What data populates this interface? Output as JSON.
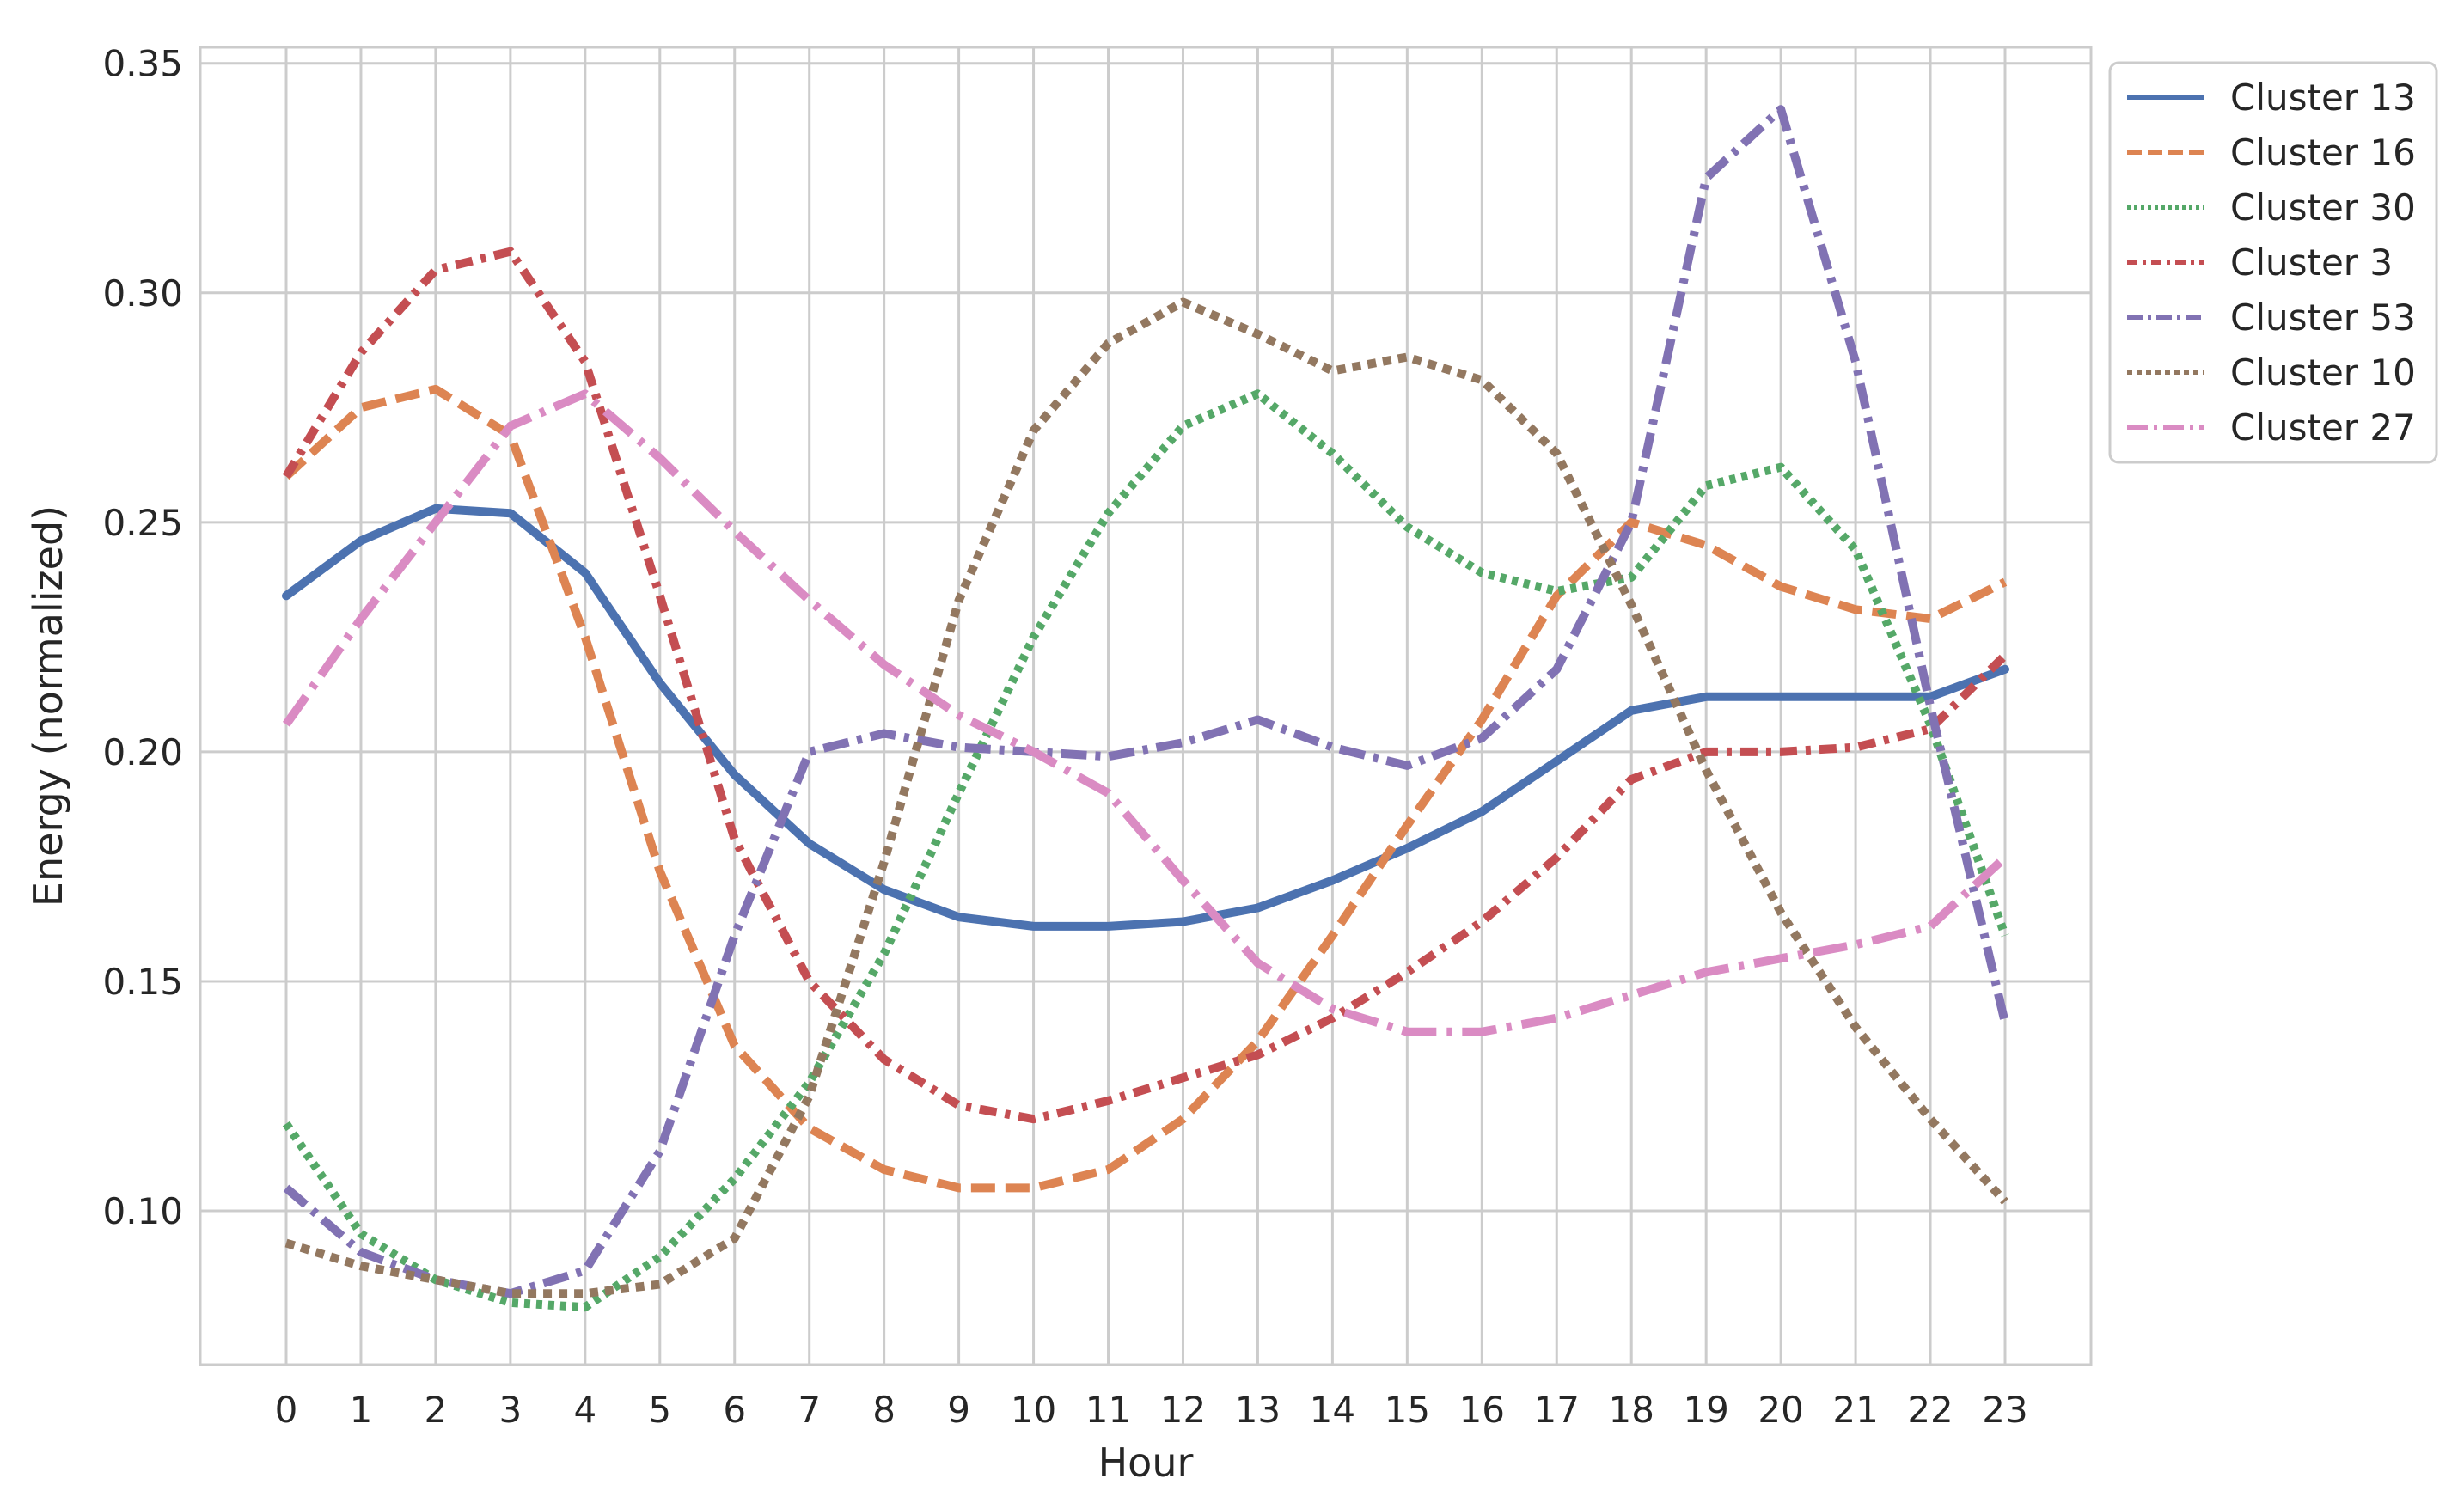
{
  "chart_data": {
    "type": "line",
    "xlabel": "Hour",
    "ylabel": "Energy (normalized)",
    "x": [
      0,
      1,
      2,
      3,
      4,
      5,
      6,
      7,
      8,
      9,
      10,
      11,
      12,
      13,
      14,
      15,
      16,
      17,
      18,
      19,
      20,
      21,
      22,
      23
    ],
    "xlim": [
      -1.15,
      24.15
    ],
    "ylim": [
      0.0665,
      0.3535
    ],
    "y_ticks": [
      0.1,
      0.15,
      0.2,
      0.25,
      0.3,
      0.35
    ],
    "y_tick_labels": [
      "0.10",
      "0.15",
      "0.20",
      "0.25",
      "0.30",
      "0.35"
    ],
    "grid": true,
    "legend_position": "outside-top-right",
    "series": [
      {
        "name": "Cluster 13",
        "color": "#4c72b0",
        "dash": "solid",
        "values": [
          0.234,
          0.246,
          0.253,
          0.252,
          0.239,
          0.215,
          0.195,
          0.18,
          0.17,
          0.164,
          0.162,
          0.162,
          0.163,
          0.166,
          0.172,
          0.179,
          0.187,
          0.198,
          0.209,
          0.212,
          0.212,
          0.212,
          0.212,
          0.218
        ]
      },
      {
        "name": "Cluster 16",
        "color": "#dd8452",
        "dash": "dashed",
        "values": [
          0.26,
          0.275,
          0.279,
          0.269,
          0.225,
          0.174,
          0.136,
          0.118,
          0.109,
          0.105,
          0.105,
          0.109,
          0.12,
          0.137,
          0.16,
          0.184,
          0.207,
          0.234,
          0.25,
          0.245,
          0.236,
          0.231,
          0.229,
          0.237
        ]
      },
      {
        "name": "Cluster 30",
        "color": "#55a868",
        "dash": "dotted",
        "values": [
          0.119,
          0.095,
          0.085,
          0.08,
          0.079,
          0.09,
          0.107,
          0.128,
          0.156,
          0.191,
          0.225,
          0.252,
          0.271,
          0.278,
          0.265,
          0.249,
          0.239,
          0.235,
          0.238,
          0.258,
          0.262,
          0.244,
          0.206,
          0.16
        ]
      },
      {
        "name": "Cluster 3",
        "color": "#c44e52",
        "dash": "dashdot-short",
        "values": [
          0.26,
          0.287,
          0.305,
          0.309,
          0.285,
          0.234,
          0.181,
          0.15,
          0.133,
          0.123,
          0.12,
          0.124,
          0.129,
          0.134,
          0.142,
          0.152,
          0.163,
          0.177,
          0.194,
          0.2,
          0.2,
          0.201,
          0.205,
          0.221
        ]
      },
      {
        "name": "Cluster 53",
        "color": "#8172b3",
        "dash": "dashdot",
        "values": [
          0.105,
          0.091,
          0.085,
          0.082,
          0.087,
          0.113,
          0.16,
          0.2,
          0.204,
          0.201,
          0.2,
          0.199,
          0.202,
          0.207,
          0.201,
          0.197,
          0.203,
          0.218,
          0.25,
          0.325,
          0.34,
          0.285,
          0.21,
          0.141
        ]
      },
      {
        "name": "Cluster 10",
        "color": "#937860",
        "dash": "dotted-dense",
        "values": [
          0.093,
          0.088,
          0.085,
          0.082,
          0.082,
          0.084,
          0.094,
          0.125,
          0.176,
          0.233,
          0.27,
          0.289,
          0.298,
          0.291,
          0.283,
          0.286,
          0.281,
          0.265,
          0.232,
          0.196,
          0.165,
          0.14,
          0.12,
          0.102
        ]
      },
      {
        "name": "Cluster 27",
        "color": "#da8bc3",
        "dash": "dashdot-long",
        "values": [
          0.206,
          0.229,
          0.25,
          0.271,
          0.278,
          0.264,
          0.248,
          0.233,
          0.219,
          0.208,
          0.2,
          0.191,
          0.172,
          0.154,
          0.144,
          0.139,
          0.139,
          0.142,
          0.147,
          0.152,
          0.155,
          0.158,
          0.162,
          0.177
        ]
      }
    ]
  }
}
